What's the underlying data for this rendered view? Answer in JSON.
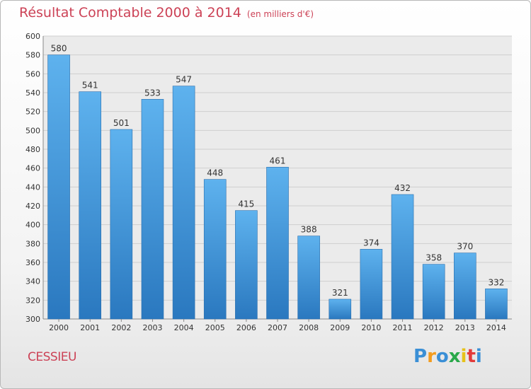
{
  "chart_data": {
    "type": "bar",
    "title": "Résultat Comptable 2000 à 2014",
    "subtitle": "(en milliers d'€)",
    "categories": [
      "2000",
      "2001",
      "2002",
      "2003",
      "2004",
      "2005",
      "2006",
      "2007",
      "2008",
      "2009",
      "2010",
      "2011",
      "2012",
      "2013",
      "2014"
    ],
    "values": [
      580,
      541,
      501,
      533,
      547,
      448,
      415,
      461,
      388,
      321,
      374,
      432,
      358,
      370,
      332
    ],
    "ylim": [
      300,
      600
    ],
    "yticks": [
      300,
      320,
      340,
      360,
      380,
      400,
      420,
      440,
      460,
      480,
      500,
      520,
      540,
      560,
      580,
      600
    ],
    "grid": true,
    "xlabel": "",
    "ylabel": ""
  },
  "place_name": "CESSIEU",
  "brand": {
    "letters": [
      "P",
      "r",
      "o",
      "x",
      "i",
      "t",
      "i"
    ],
    "colors": [
      "#3a8fd6",
      "#f39c1f",
      "#3a8fd6",
      "#2aa84a",
      "#e6c21a",
      "#e23a3a",
      "#3a8fd6"
    ]
  },
  "colors": {
    "title": "#cc4256",
    "bar_top": "#5eb2ee",
    "bar_bottom": "#2a78bf",
    "grid": "#cfcfcf"
  }
}
